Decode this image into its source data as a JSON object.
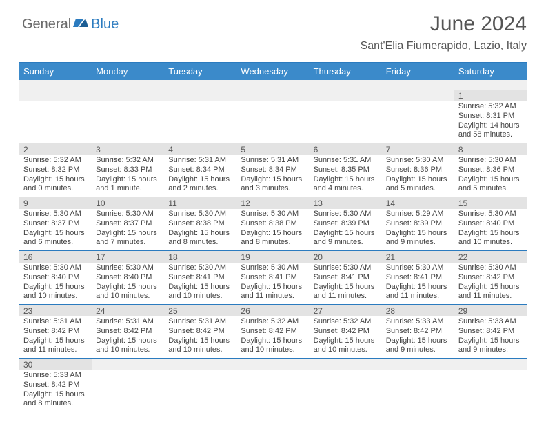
{
  "logo": {
    "part1": "General",
    "part2": "Blue"
  },
  "title": "June 2024",
  "location": "Sant'Elia Fiumerapido, Lazio, Italy",
  "colors": {
    "header_bg": "#3b8aca",
    "border": "#2b7bbf",
    "daynum_bg": "#e3e3e3",
    "spacer_bg": "#f0f0f0",
    "text": "#444444",
    "title_text": "#555555"
  },
  "day_headers": [
    "Sunday",
    "Monday",
    "Tuesday",
    "Wednesday",
    "Thursday",
    "Friday",
    "Saturday"
  ],
  "weeks": [
    {
      "has_spacer": true,
      "days": [
        null,
        null,
        null,
        null,
        null,
        null,
        {
          "n": "1",
          "sunrise": "Sunrise: 5:32 AM",
          "sunset": "Sunset: 8:31 PM",
          "daylight": "Daylight: 14 hours and 58 minutes."
        }
      ]
    },
    {
      "has_spacer": false,
      "days": [
        {
          "n": "2",
          "sunrise": "Sunrise: 5:32 AM",
          "sunset": "Sunset: 8:32 PM",
          "daylight": "Daylight: 15 hours and 0 minutes."
        },
        {
          "n": "3",
          "sunrise": "Sunrise: 5:32 AM",
          "sunset": "Sunset: 8:33 PM",
          "daylight": "Daylight: 15 hours and 1 minute."
        },
        {
          "n": "4",
          "sunrise": "Sunrise: 5:31 AM",
          "sunset": "Sunset: 8:34 PM",
          "daylight": "Daylight: 15 hours and 2 minutes."
        },
        {
          "n": "5",
          "sunrise": "Sunrise: 5:31 AM",
          "sunset": "Sunset: 8:34 PM",
          "daylight": "Daylight: 15 hours and 3 minutes."
        },
        {
          "n": "6",
          "sunrise": "Sunrise: 5:31 AM",
          "sunset": "Sunset: 8:35 PM",
          "daylight": "Daylight: 15 hours and 4 minutes."
        },
        {
          "n": "7",
          "sunrise": "Sunrise: 5:30 AM",
          "sunset": "Sunset: 8:36 PM",
          "daylight": "Daylight: 15 hours and 5 minutes."
        },
        {
          "n": "8",
          "sunrise": "Sunrise: 5:30 AM",
          "sunset": "Sunset: 8:36 PM",
          "daylight": "Daylight: 15 hours and 5 minutes."
        }
      ]
    },
    {
      "has_spacer": false,
      "days": [
        {
          "n": "9",
          "sunrise": "Sunrise: 5:30 AM",
          "sunset": "Sunset: 8:37 PM",
          "daylight": "Daylight: 15 hours and 6 minutes."
        },
        {
          "n": "10",
          "sunrise": "Sunrise: 5:30 AM",
          "sunset": "Sunset: 8:37 PM",
          "daylight": "Daylight: 15 hours and 7 minutes."
        },
        {
          "n": "11",
          "sunrise": "Sunrise: 5:30 AM",
          "sunset": "Sunset: 8:38 PM",
          "daylight": "Daylight: 15 hours and 8 minutes."
        },
        {
          "n": "12",
          "sunrise": "Sunrise: 5:30 AM",
          "sunset": "Sunset: 8:38 PM",
          "daylight": "Daylight: 15 hours and 8 minutes."
        },
        {
          "n": "13",
          "sunrise": "Sunrise: 5:30 AM",
          "sunset": "Sunset: 8:39 PM",
          "daylight": "Daylight: 15 hours and 9 minutes."
        },
        {
          "n": "14",
          "sunrise": "Sunrise: 5:29 AM",
          "sunset": "Sunset: 8:39 PM",
          "daylight": "Daylight: 15 hours and 9 minutes."
        },
        {
          "n": "15",
          "sunrise": "Sunrise: 5:30 AM",
          "sunset": "Sunset: 8:40 PM",
          "daylight": "Daylight: 15 hours and 10 minutes."
        }
      ]
    },
    {
      "has_spacer": false,
      "days": [
        {
          "n": "16",
          "sunrise": "Sunrise: 5:30 AM",
          "sunset": "Sunset: 8:40 PM",
          "daylight": "Daylight: 15 hours and 10 minutes."
        },
        {
          "n": "17",
          "sunrise": "Sunrise: 5:30 AM",
          "sunset": "Sunset: 8:40 PM",
          "daylight": "Daylight: 15 hours and 10 minutes."
        },
        {
          "n": "18",
          "sunrise": "Sunrise: 5:30 AM",
          "sunset": "Sunset: 8:41 PM",
          "daylight": "Daylight: 15 hours and 10 minutes."
        },
        {
          "n": "19",
          "sunrise": "Sunrise: 5:30 AM",
          "sunset": "Sunset: 8:41 PM",
          "daylight": "Daylight: 15 hours and 11 minutes."
        },
        {
          "n": "20",
          "sunrise": "Sunrise: 5:30 AM",
          "sunset": "Sunset: 8:41 PM",
          "daylight": "Daylight: 15 hours and 11 minutes."
        },
        {
          "n": "21",
          "sunrise": "Sunrise: 5:30 AM",
          "sunset": "Sunset: 8:41 PM",
          "daylight": "Daylight: 15 hours and 11 minutes."
        },
        {
          "n": "22",
          "sunrise": "Sunrise: 5:30 AM",
          "sunset": "Sunset: 8:42 PM",
          "daylight": "Daylight: 15 hours and 11 minutes."
        }
      ]
    },
    {
      "has_spacer": false,
      "days": [
        {
          "n": "23",
          "sunrise": "Sunrise: 5:31 AM",
          "sunset": "Sunset: 8:42 PM",
          "daylight": "Daylight: 15 hours and 11 minutes."
        },
        {
          "n": "24",
          "sunrise": "Sunrise: 5:31 AM",
          "sunset": "Sunset: 8:42 PM",
          "daylight": "Daylight: 15 hours and 10 minutes."
        },
        {
          "n": "25",
          "sunrise": "Sunrise: 5:31 AM",
          "sunset": "Sunset: 8:42 PM",
          "daylight": "Daylight: 15 hours and 10 minutes."
        },
        {
          "n": "26",
          "sunrise": "Sunrise: 5:32 AM",
          "sunset": "Sunset: 8:42 PM",
          "daylight": "Daylight: 15 hours and 10 minutes."
        },
        {
          "n": "27",
          "sunrise": "Sunrise: 5:32 AM",
          "sunset": "Sunset: 8:42 PM",
          "daylight": "Daylight: 15 hours and 10 minutes."
        },
        {
          "n": "28",
          "sunrise": "Sunrise: 5:33 AM",
          "sunset": "Sunset: 8:42 PM",
          "daylight": "Daylight: 15 hours and 9 minutes."
        },
        {
          "n": "29",
          "sunrise": "Sunrise: 5:33 AM",
          "sunset": "Sunset: 8:42 PM",
          "daylight": "Daylight: 15 hours and 9 minutes."
        }
      ]
    },
    {
      "has_spacer": false,
      "days": [
        {
          "n": "30",
          "sunrise": "Sunrise: 5:33 AM",
          "sunset": "Sunset: 8:42 PM",
          "daylight": "Daylight: 15 hours and 8 minutes."
        },
        null,
        null,
        null,
        null,
        null,
        null
      ]
    }
  ]
}
